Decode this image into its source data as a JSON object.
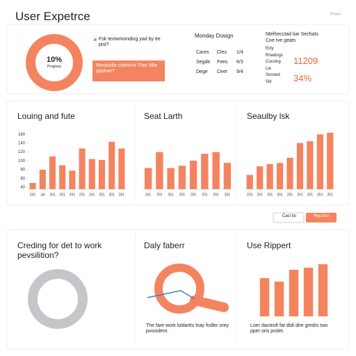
{
  "header": {
    "title": "User Expetrce",
    "action": "Share"
  },
  "progress": {
    "value_label": "10%",
    "caption": "Progress",
    "text": "Fsk textwmonding yad by tte pist?",
    "button": "Rerdsolte ciothirnk Ther Nlte pppnwr?"
  },
  "table": {
    "title": "Monday Dosign",
    "rows": [
      [
        "Cares",
        "Cles",
        "1/4"
      ],
      [
        "Segde",
        "Fees",
        "6/3"
      ],
      [
        "Dege",
        "Ceet",
        "9/4"
      ]
    ]
  },
  "stats": {
    "title": "Ntelhecctad tiar Sechats",
    "subtitle": "Coe tve geats",
    "items": [
      "Ecty",
      "Rnwdngs",
      "Cocsing",
      "Lie",
      "Soooed",
      "Siit"
    ],
    "big": "11209",
    "pct": "34%"
  },
  "chart_data": [
    {
      "type": "bar",
      "title": "Louing and fute",
      "color": "#f4845f",
      "categories": [
        "201",
        "Jal",
        "201",
        "201",
        "201",
        "201",
        "201",
        "201",
        "201",
        "201"
      ],
      "values": [
        50,
        80,
        110,
        90,
        78,
        128,
        104,
        102,
        143,
        128
      ],
      "ylim": [
        36,
        165
      ],
      "yticks": [
        160,
        140,
        120,
        100,
        80,
        60,
        40
      ]
    },
    {
      "type": "bar",
      "title": "Seat Larth",
      "color": "#f4845f",
      "categories": [
        "201",
        "201",
        "201",
        "201",
        "201",
        "201",
        "201",
        "201"
      ],
      "values": [
        37,
        65,
        37,
        41,
        50,
        62,
        65,
        46
      ],
      "ylim": [
        0,
        100
      ]
    },
    {
      "type": "bar",
      "title": "Seaulby lsk",
      "color": "#f4845f",
      "categories": [
        "201",
        "201",
        "201",
        "201",
        "201",
        "201",
        "201",
        "201",
        "201"
      ],
      "values": [
        25,
        40,
        44,
        46,
        55,
        81,
        84,
        96,
        99
      ],
      "ylim": [
        0,
        100
      ]
    },
    {
      "type": "bar",
      "title": "Use Rippert",
      "color": "#f4845f",
      "values": [
        55,
        50,
        67,
        70,
        75
      ],
      "ylim": [
        0,
        80
      ]
    }
  ],
  "buttons": [
    "Cacl tio",
    "Rep bro"
  ],
  "panels": [
    {
      "title": "Creding for det to work pevsilition?"
    },
    {
      "title": "Daly faberr",
      "text": "The fare work loldartts lnay fodler orey pvooident."
    },
    {
      "text": "Loer dacieolt fat dtdi dire gredrs two pper oris prolet."
    }
  ]
}
